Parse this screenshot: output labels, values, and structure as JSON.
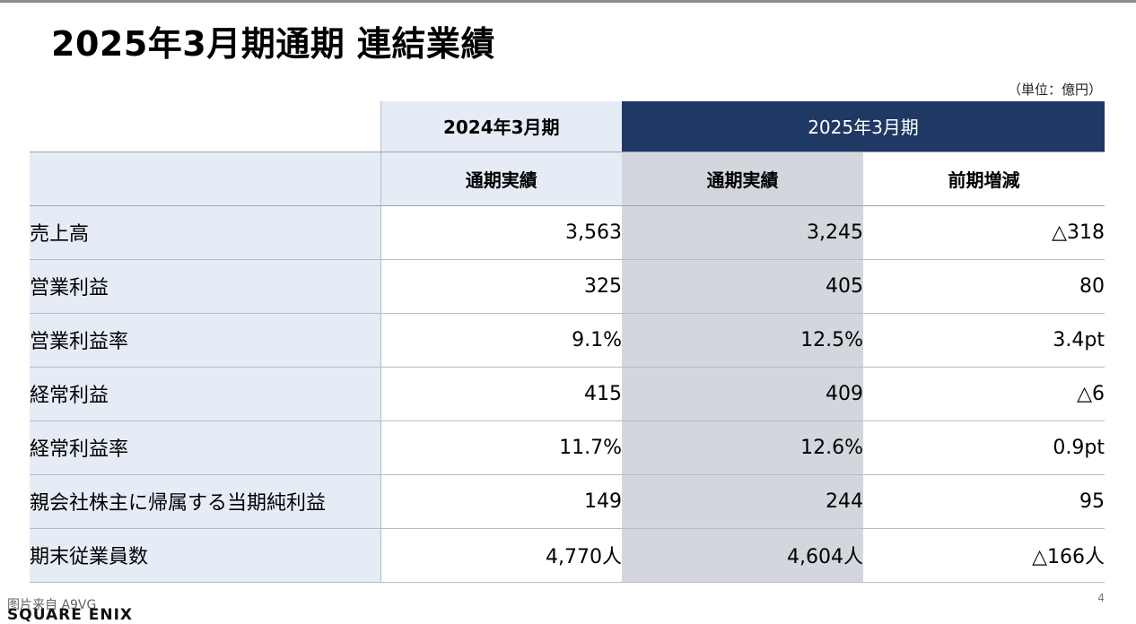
{
  "title": "2025年3月期通期 連結業績",
  "unit_note": "（単位：億円）",
  "table": {
    "period_headers": [
      "2024年3月期",
      "2025年3月期"
    ],
    "column_headers": [
      "通期実績",
      "通期実績",
      "前期増減"
    ],
    "rows": [
      {
        "label": "売上高",
        "fy2024": "3,563",
        "fy2025": "3,245",
        "change": "△318"
      },
      {
        "label": "営業利益",
        "fy2024": "325",
        "fy2025": "405",
        "change": "80"
      },
      {
        "label": "営業利益率",
        "fy2024": "9.1%",
        "fy2025": "12.5%",
        "change": "3.4pt"
      },
      {
        "label": "経常利益",
        "fy2024": "415",
        "fy2025": "409",
        "change": "△6"
      },
      {
        "label": "経常利益率",
        "fy2024": "11.7%",
        "fy2025": "12.6%",
        "change": "0.9pt"
      },
      {
        "label": "親会社株主に帰属する当期純利益",
        "fy2024": "149",
        "fy2025": "244",
        "change": "95"
      },
      {
        "label": "期末従業員数",
        "fy2024": "4,770人",
        "fy2025": "4,604人",
        "change": "△166人"
      }
    ]
  },
  "footer": {
    "source": "图片来自 A9VG",
    "page_number": "4",
    "logo_text": "SQUARE ENIX"
  },
  "colors": {
    "header_navy": "#1f3864",
    "light_blue": "#e6ecf6",
    "highlight_gray": "#d3d6dc"
  }
}
